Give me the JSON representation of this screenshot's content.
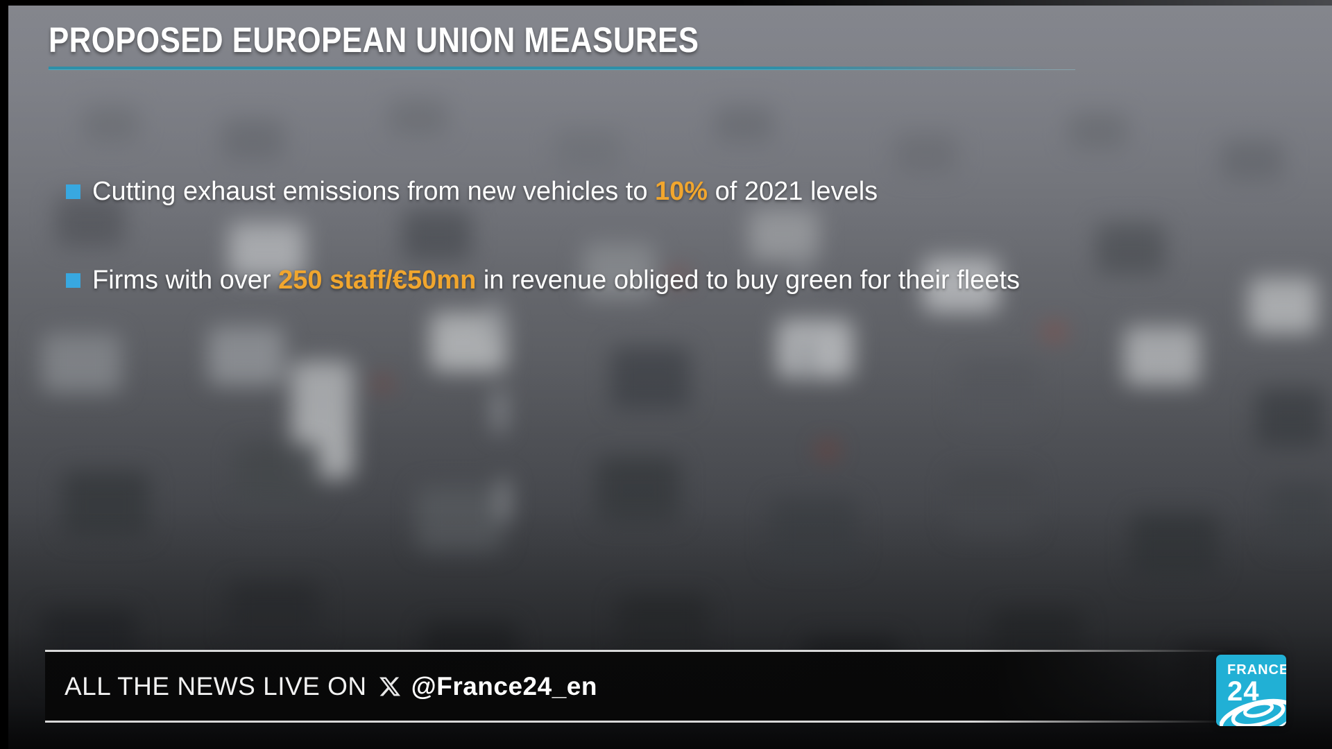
{
  "header": {
    "title": "PROPOSED EUROPEAN UNION MEASURES"
  },
  "bullets": [
    {
      "prefix": "Cutting exhaust emissions from new vehicles to ",
      "highlight": "10%",
      "suffix": " of 2021 levels"
    },
    {
      "prefix": "Firms with over ",
      "highlight": "250 staff/€50mn",
      "suffix": " in revenue obliged to buy green for their fleets"
    }
  ],
  "ticker": {
    "label": "ALL THE NEWS LIVE ON",
    "x_icon": "x-twitter-logo",
    "handle": "@France24_en"
  },
  "logo": {
    "brand_line1": "FRANCE",
    "brand_line2": "24",
    "icon": "ripple-ellipses"
  },
  "colors": {
    "highlight_orange": "#F1A62E",
    "bullet_blue": "#38A8E0",
    "underline_teal": "#2E8FA8",
    "logo_cyan": "#21B0D5",
    "ticker_line": "#D9D9D9"
  }
}
